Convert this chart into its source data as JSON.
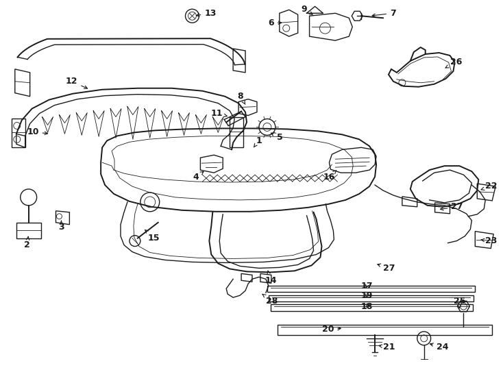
{
  "background_color": "#ffffff",
  "line_color": "#1a1a1a",
  "fig_width": 7.34,
  "fig_height": 5.4,
  "dpi": 100,
  "label_fontsize": 9,
  "label_fontweight": "bold"
}
